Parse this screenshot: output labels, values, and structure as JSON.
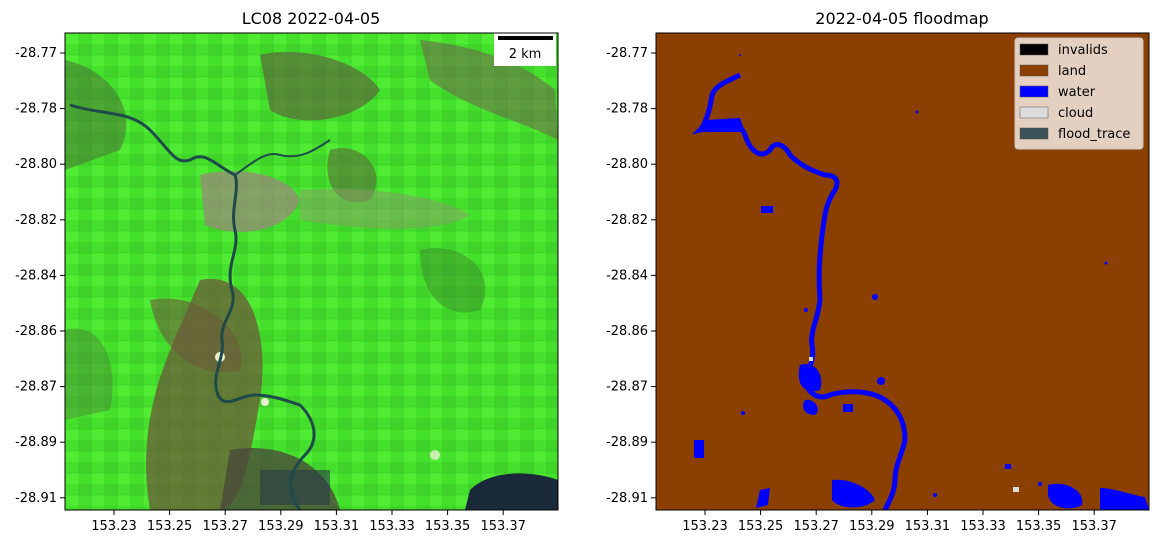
{
  "left_panel": {
    "title": "LC08 2022-04-05",
    "scalebar_label": "2 km"
  },
  "right_panel": {
    "title": "2022-04-05 floodmap",
    "legend": [
      {
        "label": "invalids",
        "color": "#000000"
      },
      {
        "label": "land",
        "color": "#8b3f00"
      },
      {
        "label": "water",
        "color": "#0000ff"
      },
      {
        "label": "cloud",
        "color": "#dcdcdc"
      },
      {
        "label": "flood_trace",
        "color": "#3b5258"
      }
    ]
  },
  "y_ticks": [
    "-28.77",
    "-28.78",
    "-28.80",
    "-28.82",
    "-28.84",
    "-28.86",
    "-28.87",
    "-28.89",
    "-28.91"
  ],
  "x_ticks": [
    "153.23",
    "153.25",
    "153.27",
    "153.29",
    "153.31",
    "153.33",
    "153.35",
    "153.37"
  ],
  "colors": {
    "vegetation": "#45e62c",
    "vegetation_dark": "#2f9e24",
    "bare_soil": "#6b5a3a",
    "river_satellite": "#1f4a4a",
    "urban": "#9a8a7a",
    "land": "#8b3f00",
    "water": "#0000ff"
  }
}
